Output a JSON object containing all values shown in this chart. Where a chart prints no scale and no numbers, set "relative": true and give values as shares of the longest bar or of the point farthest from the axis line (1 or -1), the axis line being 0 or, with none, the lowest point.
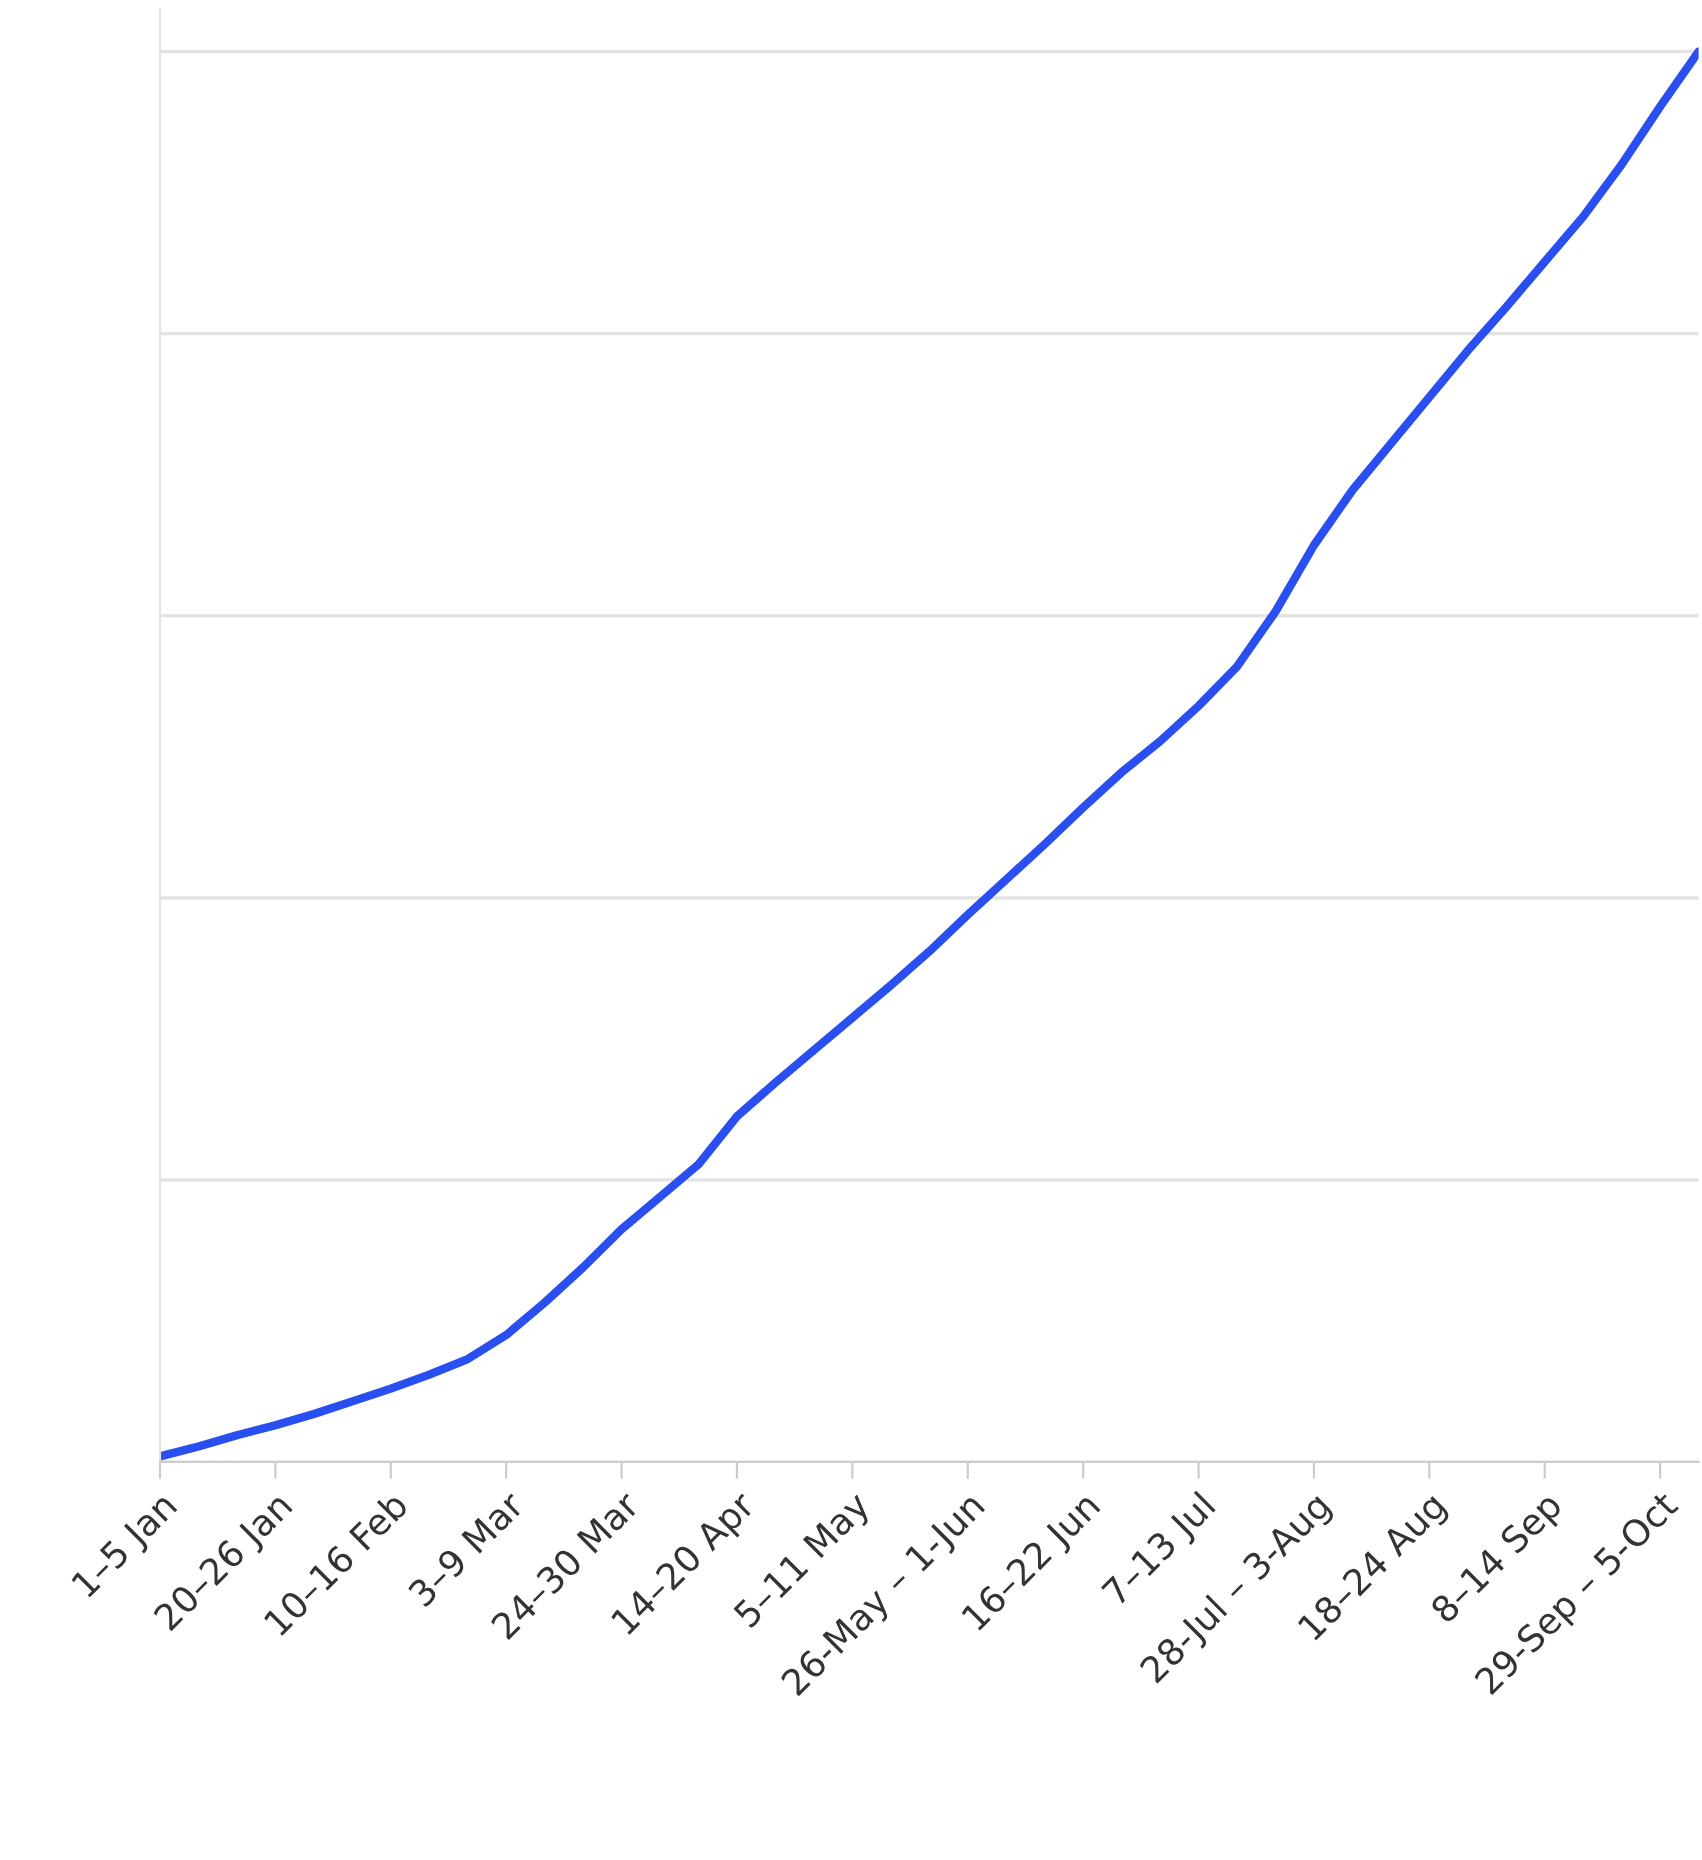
{
  "chart_data": {
    "type": "line",
    "relative": true,
    "grid": "y",
    "marker": "none",
    "line_style": "solid",
    "categories": [
      "1–5 Jan",
      null,
      null,
      "20–26 Jan",
      null,
      null,
      "10–16 Feb",
      null,
      null,
      "3–9 Mar",
      null,
      null,
      "24–30 Mar",
      null,
      null,
      "14–20 Apr",
      null,
      null,
      "5–11 May",
      null,
      null,
      "26-May – 1-Jun",
      null,
      null,
      "16–22 Jun",
      null,
      null,
      "7–13 Jul",
      null,
      null,
      "28-Jul – 3-Aug",
      null,
      null,
      "18–24 Aug",
      null,
      null,
      "8–14 Sep",
      null,
      null,
      "29-Sep – 5-Oct",
      null
    ],
    "series": [
      {
        "color": "#2a4ff0",
        "values": [
          0.004,
          0.011,
          0.019,
          0.026,
          0.034,
          0.043,
          0.052,
          0.062,
          0.073,
          0.09,
          0.113,
          0.138,
          0.165,
          0.188,
          0.211,
          0.245,
          0.269,
          0.292,
          0.315,
          0.338,
          0.362,
          0.388,
          0.413,
          0.438,
          0.464,
          0.489,
          0.511,
          0.536,
          0.564,
          0.603,
          0.65,
          0.689,
          0.722,
          0.755,
          0.788,
          0.819,
          0.851,
          0.883,
          0.92,
          0.961,
          1
        ]
      }
    ]
  }
}
